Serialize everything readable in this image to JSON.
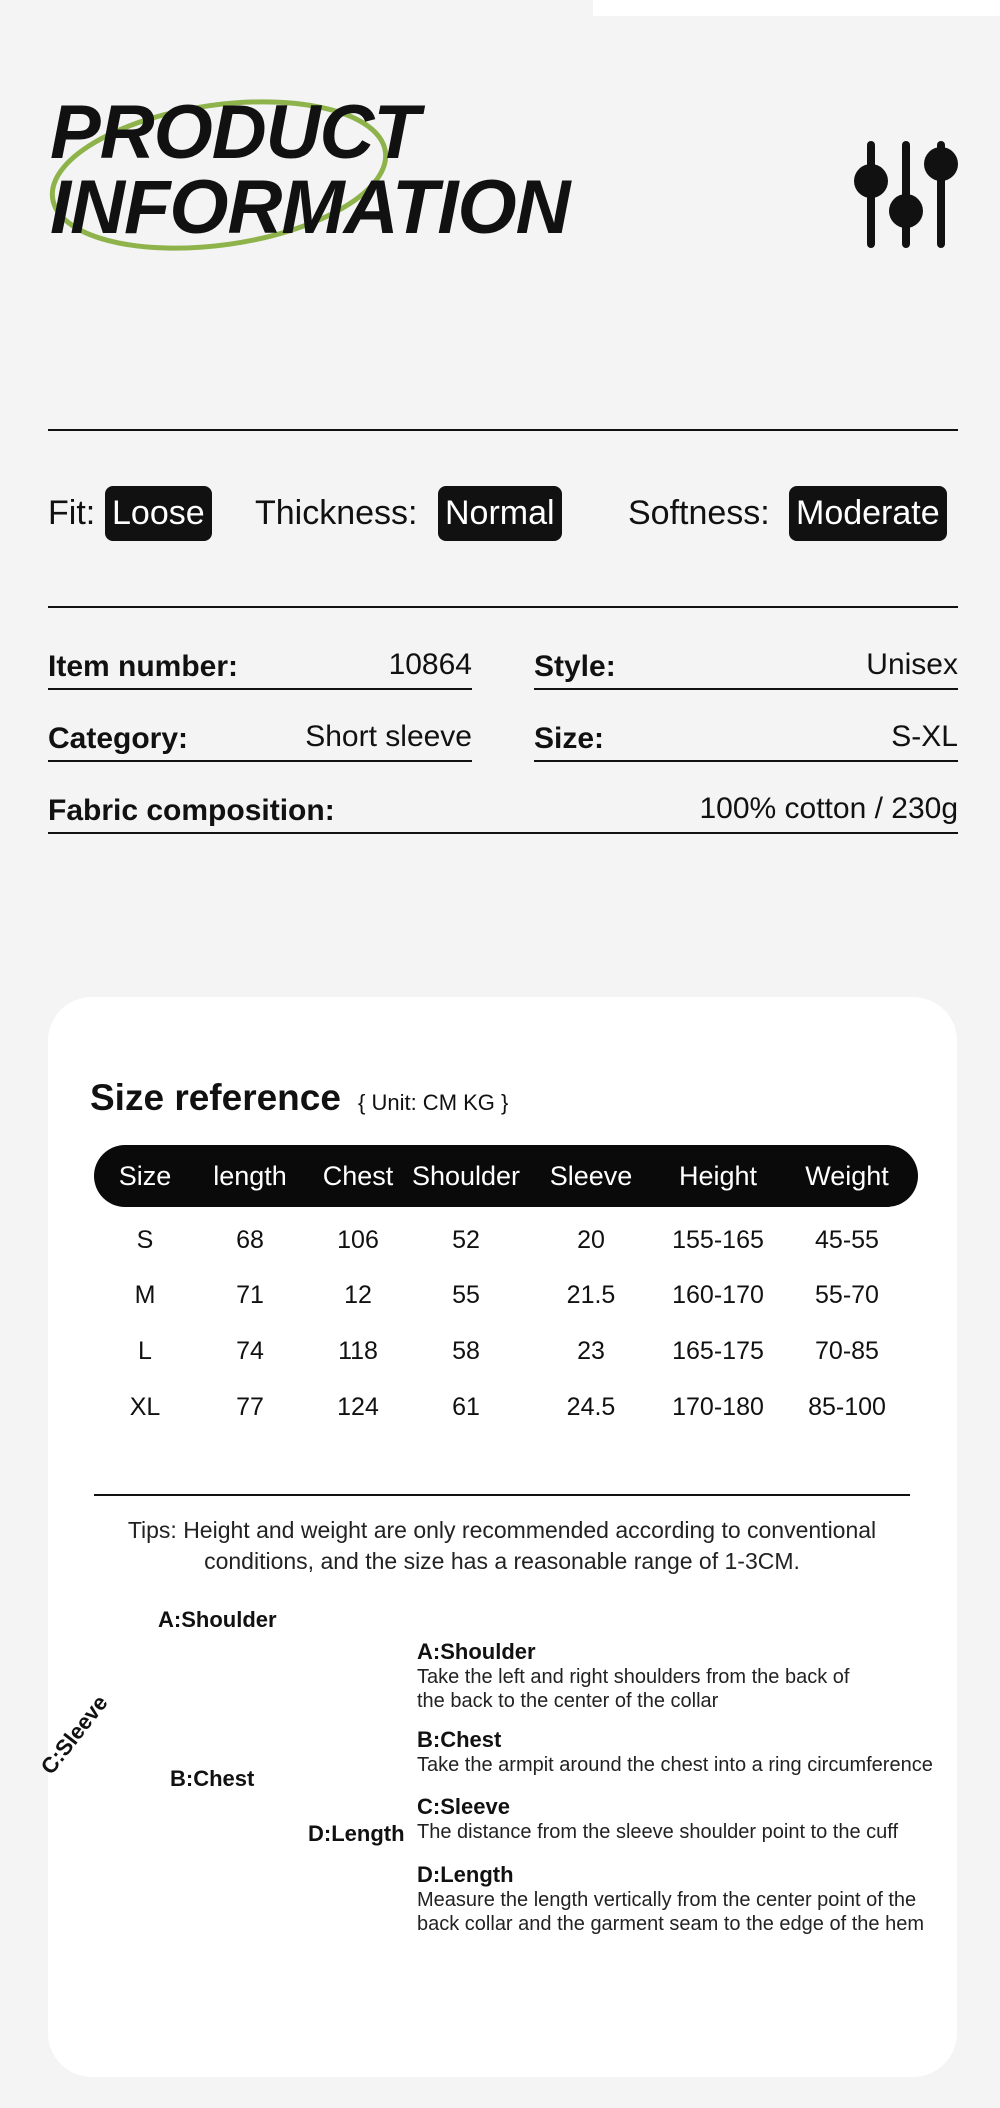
{
  "header": {
    "title_line1": "PRODUCT",
    "title_line2": "INFORMATION"
  },
  "attributes": [
    {
      "label": "Fit:",
      "value": "Loose"
    },
    {
      "label": "Thickness:",
      "value": "Normal"
    },
    {
      "label": "Softness:",
      "value": "Moderate"
    }
  ],
  "details": [
    {
      "label": "Item number:",
      "value": "10864"
    },
    {
      "label": "Style:",
      "value": "Unisex"
    },
    {
      "label": "Category:",
      "value": "Short sleeve"
    },
    {
      "label": "Size:",
      "value": "S-XL"
    },
    {
      "label": "Fabric composition:",
      "value": "100% cotton / 230g"
    }
  ],
  "size_reference": {
    "title": "Size reference",
    "unit": "{ Unit: CM KG }",
    "columns": [
      "Size",
      "length",
      "Chest",
      "Shoulder",
      "Sleeve",
      "Height",
      "Weight"
    ],
    "rows": [
      [
        "S",
        68,
        106,
        52,
        20,
        "155-165",
        "45-55"
      ],
      [
        "M",
        71,
        12,
        55,
        21.5,
        "160-170",
        "55-70"
      ],
      [
        "L",
        74,
        118,
        58,
        23,
        "165-175",
        "70-85"
      ],
      [
        "XL",
        77,
        124,
        61,
        24.5,
        "170-180",
        "85-100"
      ]
    ]
  },
  "tips": [
    "Tips: Height and weight are only recommended according to conventional",
    "conditions, and the size has a reasonable range of 1-3CM."
  ],
  "diagram": {
    "labels": {
      "shoulder": "A:Shoulder",
      "chest": "B:Chest",
      "sleeve": "C:Sleeve",
      "length": "D:Length"
    },
    "descriptions": [
      {
        "title": "A:Shoulder",
        "lines": [
          "Take the left and right shoulders from the back of",
          "the back to the center of the collar"
        ]
      },
      {
        "title": "B:Chest",
        "lines": [
          "Take the armpit around the chest into a ring circumference"
        ]
      },
      {
        "title": "C:Sleeve",
        "lines": [
          "The distance from the sleeve shoulder point to the cuff"
        ]
      },
      {
        "title": "D:Length",
        "lines": [
          "Measure the length vertically from the center point of the",
          "back collar and the garment seam to the edge of the hem"
        ]
      }
    ]
  }
}
